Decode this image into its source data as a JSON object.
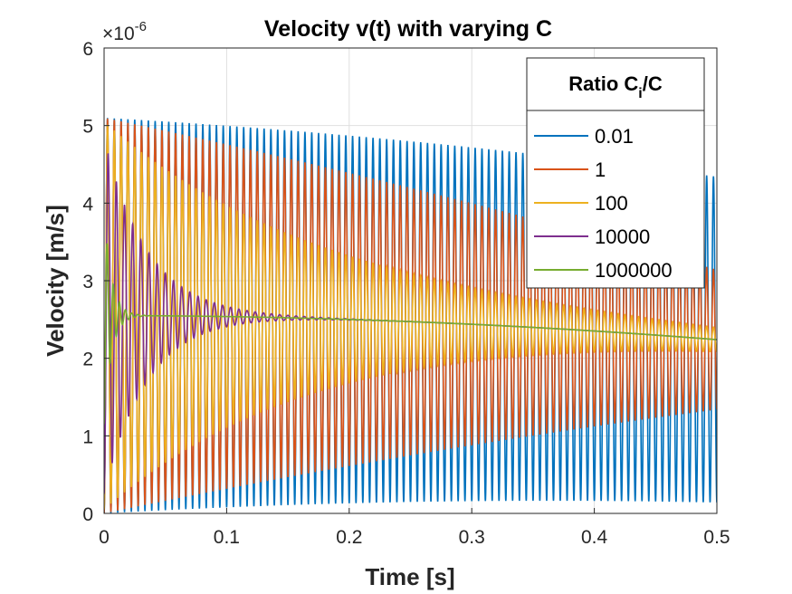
{
  "chart_data": {
    "type": "line",
    "title": "Velocity v(t) with varying C",
    "xlabel": "Time [s]",
    "ylabel": "Velocity [m/s]",
    "xlim": [
      0,
      0.5
    ],
    "ylim": [
      0,
      6
    ],
    "y_multiplier": "×10",
    "y_multiplier_exponent": "-6",
    "x_ticks": [
      "0",
      "0.1",
      "0.2",
      "0.3",
      "0.4",
      "0.5"
    ],
    "y_ticks": [
      "0",
      "1",
      "2",
      "3",
      "4",
      "5",
      "6"
    ],
    "grid": true,
    "legend_position": "top-right",
    "legend_title": "Ratio C",
    "legend_title_sub": "i",
    "legend_title_suffix": "/C",
    "series": [
      {
        "name": "0.01",
        "color": "#0072BD",
        "mean": 2.55,
        "amp_start": 2.55,
        "amp_end": 2.1,
        "freq_hz": 180,
        "decay": 0.0
      },
      {
        "name": "1",
        "color": "#D95319",
        "mean": 2.55,
        "amp_start": 2.55,
        "amp_end": 0.9,
        "freq_hz": 180,
        "decay": 0.0
      },
      {
        "name": "100",
        "color": "#EDB120",
        "mean": 2.55,
        "amp_start": 2.5,
        "amp_end": 0.2,
        "freq_hz": 180,
        "decay": 0.0
      },
      {
        "name": "10000",
        "color": "#7E2F8E",
        "mean": 2.55,
        "amp_start": 2.3,
        "amp_end": 0.0,
        "freq_hz": 150,
        "decay": 0.0
      },
      {
        "name": "1000000",
        "color": "#77AC30",
        "mean": 2.55,
        "amp_start": 1.4,
        "amp_end": 0.0,
        "freq_hz": 200,
        "decay": 0.0
      }
    ],
    "steady_value_start": 2.55,
    "steady_value_end": 2.24
  }
}
